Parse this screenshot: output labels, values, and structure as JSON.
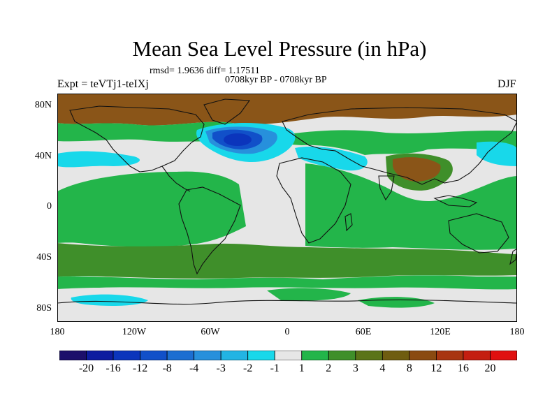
{
  "title": "Mean Sea Level Pressure (in hPa)",
  "stats": "rmsd= 1.9636 diff= 1.17511",
  "period": "0708kyr BP - 0708kyr BP",
  "experiment": "Expt = teVTj1-teIXj",
  "season": "DJF",
  "lat_labels": [
    "80N",
    "40N",
    "0",
    "40S",
    "80S"
  ],
  "lon_labels": [
    "180",
    "120W",
    "60W",
    "0",
    "60E",
    "120E",
    "180"
  ],
  "colorbar": {
    "labels": [
      "-20",
      "-16",
      "-12",
      "-8",
      "-4",
      "-3",
      "-2",
      "-1",
      "1",
      "2",
      "3",
      "4",
      "8",
      "12",
      "16",
      "20"
    ],
    "colors": [
      "#1c0f6b",
      "#0d1ca0",
      "#0b35bc",
      "#1150c9",
      "#1c6ed1",
      "#2790dc",
      "#22b4e3",
      "#18d8ea",
      "#e6e6e6",
      "#23b54a",
      "#3f8f2a",
      "#5b7418",
      "#6f5d10",
      "#8a4a10",
      "#a83510",
      "#c41e10",
      "#e01010"
    ]
  },
  "palette": {
    "neutral": "#e6e6e6",
    "pos_light": "#23b54a",
    "pos_mid": "#3f8f2a",
    "pos_strong": "#8a5518",
    "neg_light": "#18d8ea",
    "neg_mid": "#2790dc",
    "neg_strong": "#1150c9",
    "neg_core": "#0b35bc",
    "coast": "#111111"
  }
}
